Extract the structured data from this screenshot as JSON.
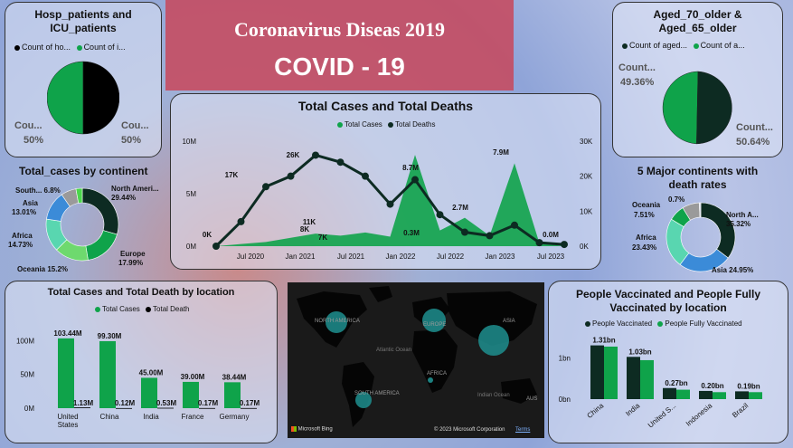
{
  "banner": {
    "subtitle": "Coronavirus Diseas 2019",
    "title": "COVID - 19"
  },
  "colors": {
    "green": "#0fa34a",
    "dark": "#0d2b22",
    "black": "#000000",
    "light_green": "#6ed96e",
    "blue": "#3b8bd8",
    "teal": "#59d6b0",
    "grey": "#9a9a9a",
    "banner": "#c8505e"
  },
  "hosp": {
    "title_line1": "Hosp_patients and",
    "title_line2": "ICU_patients",
    "legend": [
      "Count of ho...",
      "Count of i..."
    ],
    "left_label": "Cou...",
    "left_pct": "50%",
    "right_label": "Cou...",
    "right_pct": "50%",
    "chart_data": {
      "type": "pie",
      "values": [
        50,
        50
      ]
    }
  },
  "aged": {
    "title_line1": "Aged_70_older &",
    "title_line2": "Aged_65_older",
    "legend": [
      "Count of aged...",
      "Count of a..."
    ],
    "left_label": "Count...",
    "left_pct": "49.36%",
    "right_label": "Count...",
    "right_pct": "50.64%",
    "chart_data": {
      "type": "pie",
      "values": [
        49.36,
        50.64
      ]
    }
  },
  "continent": {
    "title": "Total_cases by continent",
    "labels": {
      "south": "South... 6.8%",
      "asia_name": "Asia",
      "asia_pct": "13.01%",
      "africa_name": "Africa",
      "africa_pct": "14.73%",
      "oceania": "Oceania 15.2%",
      "na_name": "North Ameri...",
      "na_pct": "29.44%",
      "europe_name": "Europe",
      "europe_pct": "17.99%"
    },
    "chart_data": {
      "type": "pie",
      "categories": [
        "North America",
        "Europe",
        "Oceania",
        "Africa",
        "Asia",
        "South America",
        "Other"
      ],
      "values": [
        29.44,
        17.99,
        15.2,
        14.73,
        13.01,
        6.8,
        2.83
      ]
    }
  },
  "major": {
    "title_line1": "5 Major continents with",
    "title_line2": "death rates",
    "labels": {
      "oceania_name": "Oceania",
      "oceania_pct": "7.51%",
      "small": "0.7%",
      "na_name": "North A...",
      "na_pct": "35.32%",
      "africa_name": "Africa",
      "africa_pct": "23.43%",
      "asia": "Asia 24.95%"
    },
    "chart_data": {
      "type": "pie",
      "categories": [
        "North America",
        "Asia",
        "Africa",
        "Oceania",
        "Other",
        "Other2"
      ],
      "values": [
        35.32,
        24.95,
        23.43,
        7.51,
        8.09,
        0.7
      ]
    }
  },
  "timeline": {
    "title": "Total Cases and Total Deaths",
    "legend": [
      "Total Cases",
      "Total Deaths"
    ],
    "y_left": [
      "10M",
      "5M",
      "0M"
    ],
    "y_right": [
      "30K",
      "20K",
      "10K",
      "0K"
    ],
    "x_ticks": [
      "Jul 2020",
      "Jan 2021",
      "Jul 2021",
      "Jan 2022",
      "Jul 2022",
      "Jan 2023",
      "Jul 2023"
    ],
    "annotations": [
      "0K",
      "17K",
      "26K",
      "11K",
      "8K",
      "7K",
      "8.7M",
      "0.3M",
      "2.7M",
      "7.9M",
      "0.0M"
    ],
    "chart_data": {
      "type": "line",
      "x": [
        "2020-01",
        "2020-04",
        "2020-07",
        "2020-10",
        "2021-01",
        "2021-04",
        "2021-07",
        "2021-10",
        "2022-01",
        "2022-04",
        "2022-07",
        "2022-10",
        "2023-01",
        "2023-04",
        "2023-07"
      ],
      "series": [
        {
          "name": "Total Cases",
          "axis": "left",
          "values": [
            0,
            0.2,
            0.4,
            0.8,
            1.2,
            1.0,
            1.3,
            0.9,
            8.7,
            1.5,
            2.7,
            1.0,
            7.9,
            0.3,
            0.0
          ]
        },
        {
          "name": "Total Deaths",
          "axis": "right",
          "values": [
            0,
            7000,
            17000,
            20000,
            26000,
            24000,
            20000,
            12000,
            19000,
            9000,
            4000,
            3000,
            6000,
            1000,
            500
          ]
        }
      ],
      "ylim_left": [
        0,
        10
      ],
      "ylim_right": [
        0,
        30000
      ]
    }
  },
  "location": {
    "title": "Total Cases and Total Death by location",
    "legend": [
      "Total Cases",
      "Total Death"
    ],
    "y_ticks": [
      "100M",
      "50M",
      "0M"
    ],
    "chart_data": {
      "type": "bar",
      "categories": [
        "United States",
        "China",
        "India",
        "France",
        "Germany"
      ],
      "category_labels": [
        "United\nStates",
        "China",
        "India",
        "France",
        "Germany"
      ],
      "series": [
        {
          "name": "Total Cases",
          "values": [
            103.44,
            99.3,
            45.0,
            39.0,
            38.44
          ],
          "labels": [
            "103.44M",
            "99.30M",
            "45.00M",
            "39.00M",
            "38.44M"
          ]
        },
        {
          "name": "Total Death",
          "values": [
            1.13,
            0.12,
            0.53,
            0.17,
            0.17
          ],
          "labels": [
            "1.13M",
            "0.12M",
            "0.53M",
            "0.17M",
            "0.17M"
          ]
        }
      ],
      "ylim": [
        0,
        110
      ]
    }
  },
  "map": {
    "labels": [
      "NORTH AMERICA",
      "EUROPE",
      "ASIA",
      "Atlantic Ocean",
      "AFRICA",
      "SOUTH AMERICA",
      "Indian Ocean",
      "AUS"
    ],
    "brand": "Microsoft Bing",
    "copyright": "© 2023 Microsoft Corporation",
    "terms": "Terms"
  },
  "vaccinated": {
    "title_line1": "People Vaccinated and People Fully",
    "title_line2": "Vaccinated by location",
    "legend": [
      "People Vaccinated",
      "People Fully Vaccinated"
    ],
    "y_ticks": [
      "1bn",
      "0bn"
    ],
    "chart_data": {
      "type": "bar",
      "categories": [
        "China",
        "India",
        "United S...",
        "Indonesia",
        "Brazil"
      ],
      "series": [
        {
          "name": "People Vaccinated",
          "values": [
            1.31,
            1.03,
            0.27,
            0.2,
            0.19
          ],
          "labels": [
            "1.31bn",
            "1.03bn",
            "0.27bn",
            "0.20bn",
            "0.19bn"
          ]
        },
        {
          "name": "People Fully Vaccinated",
          "values": [
            1.28,
            0.95,
            0.23,
            0.17,
            0.17
          ]
        }
      ],
      "ylim": [
        0,
        1.5
      ]
    }
  }
}
